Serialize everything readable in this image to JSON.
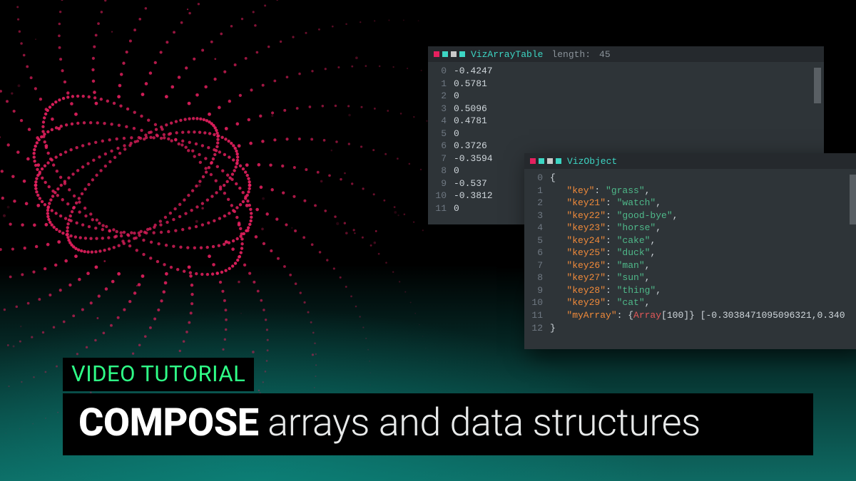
{
  "background": {
    "particle_color": "#e6205f",
    "gradient_teal": "#149c8c",
    "black": "#000000"
  },
  "panel_array": {
    "header_dots": [
      "#e6205f",
      "#3dd6c4",
      "#c9c9c9",
      "#3dd6c4"
    ],
    "title": "VizArrayTable",
    "title_color": "#3dd6c4",
    "meta_label": "length:",
    "meta_value": "45",
    "background": "#2e3438",
    "gutter_color": "#6f7882",
    "value_color": "#cfd6db",
    "rows": [
      {
        "idx": "0",
        "val": "-0.4247"
      },
      {
        "idx": "1",
        "val": "0.5781"
      },
      {
        "idx": "2",
        "val": "0"
      },
      {
        "idx": "3",
        "val": "0.5096"
      },
      {
        "idx": "4",
        "val": "0.4781"
      },
      {
        "idx": "5",
        "val": "0"
      },
      {
        "idx": "6",
        "val": "0.3726"
      },
      {
        "idx": "7",
        "val": "-0.3594"
      },
      {
        "idx": "8",
        "val": "0"
      },
      {
        "idx": "9",
        "val": "-0.537"
      },
      {
        "idx": "10",
        "val": "-0.3812"
      },
      {
        "idx": "11",
        "val": "0"
      }
    ]
  },
  "panel_object": {
    "header_dots": [
      "#e6205f",
      "#3dd6c4",
      "#c9c9c9",
      "#3dd6c4"
    ],
    "title": "VizObject",
    "title_color": "#3dd6c4",
    "background": "#2e3438",
    "gutter_color": "#6f7882",
    "key_color": "#f08a3a",
    "string_color": "#4fb98a",
    "type_color": "#e25858",
    "punc_color": "#cfd6db",
    "lines": [
      {
        "idx": "0",
        "type": "brace",
        "text": "{"
      },
      {
        "idx": "1",
        "type": "kv",
        "key": "\"key\"",
        "val": "\"grass\""
      },
      {
        "idx": "2",
        "type": "kv",
        "key": "\"key21\"",
        "val": "\"watch\""
      },
      {
        "idx": "3",
        "type": "kv",
        "key": "\"key22\"",
        "val": "\"good-bye\""
      },
      {
        "idx": "4",
        "type": "kv",
        "key": "\"key23\"",
        "val": "\"horse\""
      },
      {
        "idx": "5",
        "type": "kv",
        "key": "\"key24\"",
        "val": "\"cake\""
      },
      {
        "idx": "6",
        "type": "kv",
        "key": "\"key25\"",
        "val": "\"duck\""
      },
      {
        "idx": "7",
        "type": "kv",
        "key": "\"key26\"",
        "val": "\"man\""
      },
      {
        "idx": "8",
        "type": "kv",
        "key": "\"key27\"",
        "val": "\"sun\""
      },
      {
        "idx": "9",
        "type": "kv",
        "key": "\"key28\"",
        "val": "\"thing\""
      },
      {
        "idx": "10",
        "type": "kv",
        "key": "\"key29\"",
        "val": "\"cat\""
      },
      {
        "idx": "11",
        "type": "arr",
        "key": "\"myArray\"",
        "typelabel": "Array",
        "len": "[100]",
        "preview": "[-0.3038471095096321,0.340"
      },
      {
        "idx": "12",
        "type": "brace",
        "text": "}"
      }
    ]
  },
  "labels": {
    "video_tutorial": "VIDEO TUTORIAL",
    "video_tutorial_color": "#2fff87",
    "title_bold": "COMPOSE",
    "title_rest": " arrays and data structures",
    "title_bg": "#000000",
    "title_color": "#e8eaea"
  }
}
